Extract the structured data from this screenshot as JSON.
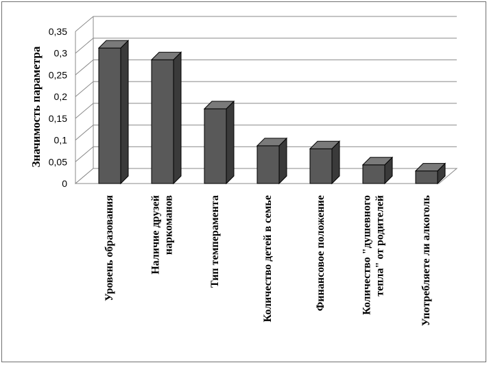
{
  "chart_data": {
    "type": "bar",
    "title": "",
    "xlabel": "",
    "ylabel": "Значимость  параметра",
    "ylim": [
      0,
      0.35
    ],
    "yticks": [
      "0",
      "0,05",
      "0,1",
      "0,15",
      "0,2",
      "0,25",
      "0,3",
      "0,35"
    ],
    "grid": true,
    "categories": [
      [
        "Уровень образования"
      ],
      [
        "Наличие  друзей",
        "наркоманов"
      ],
      [
        "Тип  темперамента"
      ],
      [
        "Количество детей в семье"
      ],
      [
        "Финансовое  положение"
      ],
      [
        "Количество  \"душевного",
        "тепла\"  от родителей"
      ],
      [
        "Употребляете  ли алкоголь"
      ]
    ],
    "values": [
      0.312,
      0.285,
      0.172,
      0.087,
      0.08,
      0.043,
      0.029
    ],
    "colors": {
      "bar_front": "#595959",
      "bar_side": "#3a3a3a",
      "bar_top": "#7a7a7a",
      "grid": "#888888"
    }
  }
}
